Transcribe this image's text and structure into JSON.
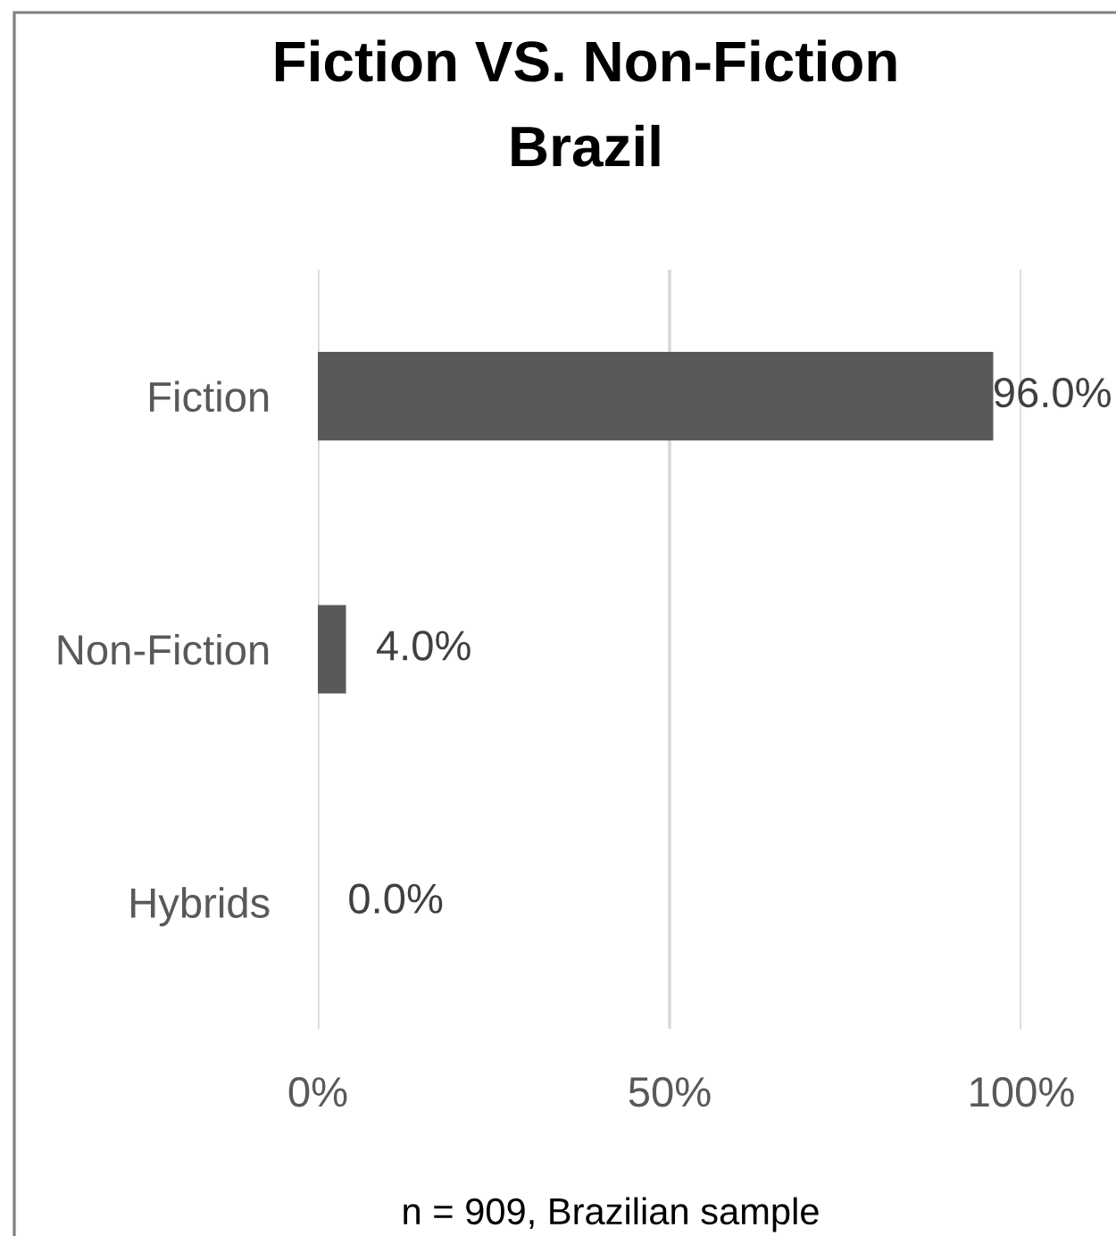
{
  "chart_data": {
    "type": "bar",
    "orientation": "horizontal",
    "title": "Fiction VS. Non-Fiction\nBrazil",
    "categories": [
      "Fiction",
      "Non-Fiction",
      "Hybrids"
    ],
    "values": [
      96.0,
      4.0,
      0.0
    ],
    "color": "#595959",
    "value_labels": [
      "96.0%",
      "4.0%",
      "0.0%"
    ],
    "xlim": [
      0,
      100
    ],
    "xticks": [
      {
        "value": 0,
        "label": "0%"
      },
      {
        "value": 50,
        "label": "50%"
      },
      {
        "value": 100,
        "label": "100%"
      }
    ],
    "grid": "x",
    "annotations": [
      "n = 909, Brazilian sample"
    ]
  }
}
